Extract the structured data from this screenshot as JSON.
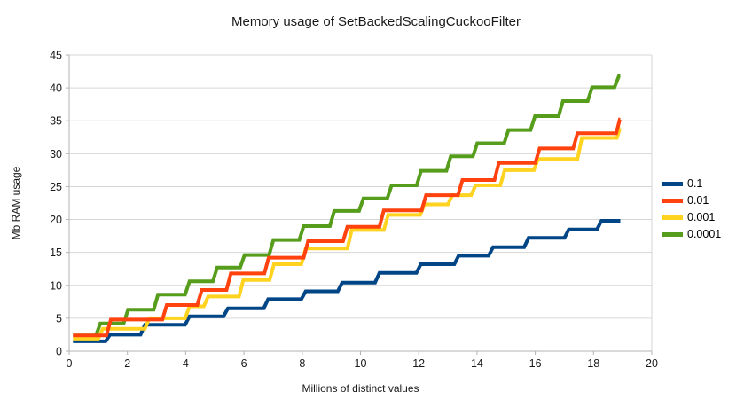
{
  "chart_data": {
    "type": "line",
    "line_style": "step",
    "title": "Memory usage of SetBackedScalingCuckooFilter",
    "xlabel": "Millions of distinct values",
    "ylabel": "Mb RAM usage",
    "xlim": [
      0,
      20
    ],
    "ylim": [
      0,
      45
    ],
    "x_ticks": [
      0,
      2,
      4,
      6,
      8,
      10,
      12,
      14,
      16,
      18,
      20
    ],
    "y_ticks": [
      0,
      5,
      10,
      15,
      20,
      25,
      30,
      35,
      40,
      45
    ],
    "grid": "horizontal",
    "legend_position": "right",
    "draw_order": [
      0,
      3,
      2,
      1
    ],
    "series": [
      {
        "name": "0.1",
        "color": "#004586",
        "points": [
          [
            0.13,
            1.5
          ],
          [
            1.25,
            1.5
          ],
          [
            1.4,
            2.5
          ],
          [
            2.45,
            2.5
          ],
          [
            2.6,
            4.0
          ],
          [
            3.98,
            4.0
          ],
          [
            4.13,
            5.3
          ],
          [
            5.3,
            5.3
          ],
          [
            5.45,
            6.5
          ],
          [
            6.68,
            6.5
          ],
          [
            6.83,
            7.9
          ],
          [
            7.97,
            7.9
          ],
          [
            8.12,
            9.1
          ],
          [
            9.22,
            9.1
          ],
          [
            9.37,
            10.4
          ],
          [
            10.5,
            10.4
          ],
          [
            10.65,
            11.9
          ],
          [
            11.92,
            11.9
          ],
          [
            12.07,
            13.2
          ],
          [
            13.22,
            13.2
          ],
          [
            13.37,
            14.5
          ],
          [
            14.4,
            14.5
          ],
          [
            14.55,
            15.8
          ],
          [
            15.62,
            15.8
          ],
          [
            15.77,
            17.2
          ],
          [
            17.0,
            17.2
          ],
          [
            17.15,
            18.5
          ],
          [
            18.12,
            18.5
          ],
          [
            18.27,
            19.8
          ],
          [
            18.92,
            19.8
          ]
        ]
      },
      {
        "name": "0.01",
        "color": "#ff420e",
        "points": [
          [
            0.13,
            2.4
          ],
          [
            1.28,
            2.4
          ],
          [
            1.43,
            4.8
          ],
          [
            3.2,
            4.8
          ],
          [
            3.35,
            7.0
          ],
          [
            4.4,
            7.0
          ],
          [
            4.55,
            9.3
          ],
          [
            5.4,
            9.3
          ],
          [
            5.55,
            11.8
          ],
          [
            6.7,
            11.8
          ],
          [
            6.85,
            14.2
          ],
          [
            8.05,
            14.2
          ],
          [
            8.2,
            16.7
          ],
          [
            9.4,
            16.7
          ],
          [
            9.55,
            18.9
          ],
          [
            10.65,
            18.9
          ],
          [
            10.8,
            21.4
          ],
          [
            12.1,
            21.4
          ],
          [
            12.25,
            23.7
          ],
          [
            13.35,
            23.7
          ],
          [
            13.5,
            26.0
          ],
          [
            14.6,
            26.0
          ],
          [
            14.75,
            28.6
          ],
          [
            16.0,
            28.6
          ],
          [
            16.15,
            30.8
          ],
          [
            17.3,
            30.8
          ],
          [
            17.45,
            33.1
          ],
          [
            18.78,
            33.1
          ],
          [
            18.9,
            35.2
          ],
          [
            18.92,
            35.2
          ]
        ]
      },
      {
        "name": "0.001",
        "color": "#ffd320",
        "points": [
          [
            0.13,
            1.9
          ],
          [
            1.0,
            1.9
          ],
          [
            1.15,
            3.4
          ],
          [
            2.6,
            3.4
          ],
          [
            2.75,
            5.0
          ],
          [
            3.98,
            5.0
          ],
          [
            4.13,
            6.8
          ],
          [
            4.62,
            6.8
          ],
          [
            4.77,
            8.3
          ],
          [
            5.83,
            8.3
          ],
          [
            5.98,
            10.8
          ],
          [
            6.88,
            10.8
          ],
          [
            7.03,
            13.2
          ],
          [
            7.97,
            13.2
          ],
          [
            8.12,
            15.6
          ],
          [
            9.55,
            15.6
          ],
          [
            9.7,
            18.4
          ],
          [
            10.8,
            18.4
          ],
          [
            10.95,
            20.7
          ],
          [
            12.05,
            20.7
          ],
          [
            12.2,
            22.3
          ],
          [
            13.0,
            22.3
          ],
          [
            13.15,
            23.7
          ],
          [
            13.8,
            23.7
          ],
          [
            13.95,
            25.2
          ],
          [
            14.8,
            25.2
          ],
          [
            14.95,
            27.5
          ],
          [
            15.95,
            27.5
          ],
          [
            16.1,
            29.2
          ],
          [
            17.45,
            29.2
          ],
          [
            17.6,
            32.4
          ],
          [
            18.8,
            32.4
          ],
          [
            18.9,
            33.8
          ],
          [
            18.92,
            33.8
          ]
        ]
      },
      {
        "name": "0.0001",
        "color": "#579d1c",
        "points": [
          [
            0.13,
            2.4
          ],
          [
            0.92,
            2.4
          ],
          [
            1.07,
            4.2
          ],
          [
            1.87,
            4.2
          ],
          [
            2.02,
            6.3
          ],
          [
            2.9,
            6.3
          ],
          [
            3.05,
            8.6
          ],
          [
            3.98,
            8.6
          ],
          [
            4.13,
            10.6
          ],
          [
            4.93,
            10.6
          ],
          [
            5.08,
            12.7
          ],
          [
            5.87,
            12.7
          ],
          [
            6.02,
            14.6
          ],
          [
            6.86,
            14.6
          ],
          [
            7.01,
            16.9
          ],
          [
            7.9,
            16.9
          ],
          [
            8.05,
            19.0
          ],
          [
            8.95,
            19.0
          ],
          [
            9.1,
            21.3
          ],
          [
            9.95,
            21.3
          ],
          [
            10.1,
            23.2
          ],
          [
            10.92,
            23.2
          ],
          [
            11.07,
            25.2
          ],
          [
            11.93,
            25.2
          ],
          [
            12.08,
            27.4
          ],
          [
            12.95,
            27.4
          ],
          [
            13.1,
            29.6
          ],
          [
            13.86,
            29.6
          ],
          [
            14.01,
            31.6
          ],
          [
            14.93,
            31.6
          ],
          [
            15.08,
            33.6
          ],
          [
            15.84,
            33.6
          ],
          [
            15.99,
            35.7
          ],
          [
            16.8,
            35.7
          ],
          [
            16.95,
            38.0
          ],
          [
            17.8,
            38.0
          ],
          [
            17.95,
            40.1
          ],
          [
            18.72,
            40.1
          ],
          [
            18.87,
            41.8
          ],
          [
            18.92,
            41.8
          ]
        ]
      }
    ]
  },
  "colors": {
    "grid": "#d6d6d6",
    "axis": "#b3b3b3",
    "tick_text": "#1a1a1a",
    "background": "#ffffff"
  }
}
